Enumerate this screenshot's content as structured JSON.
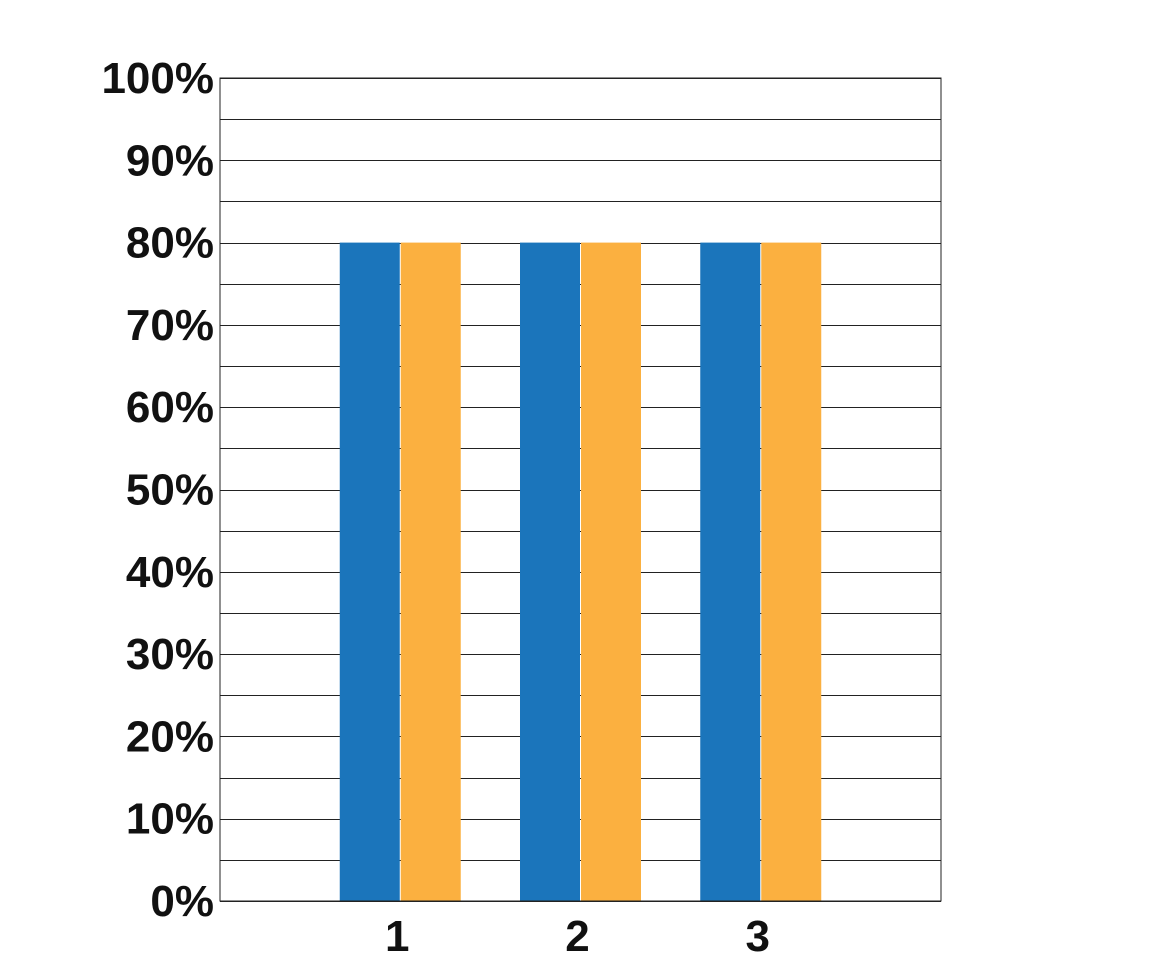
{
  "chart_data": {
    "type": "bar",
    "categories": [
      "1",
      "2",
      "3"
    ],
    "series": [
      {
        "values": [
          80,
          80,
          80
        ],
        "color": "#1B75BB"
      },
      {
        "values": [
          80,
          80,
          80
        ],
        "color": "#FBB040"
      }
    ],
    "title": "",
    "xlabel": "",
    "ylabel": "",
    "ylim": [
      0,
      100
    ],
    "yticks": [
      0,
      10,
      20,
      30,
      40,
      50,
      60,
      70,
      80,
      90,
      100
    ],
    "ytick_labels": [
      "0%",
      "10%",
      "20%",
      "30%",
      "40%",
      "50%",
      "60%",
      "70%",
      "80%",
      "90%",
      "100%"
    ],
    "minor_grid_step": 5,
    "grid": true,
    "legend": "none"
  }
}
